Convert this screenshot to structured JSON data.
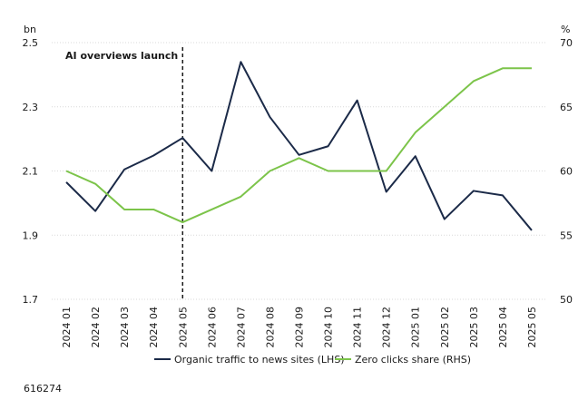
{
  "chart_data": {
    "type": "line",
    "categories": [
      "2024 01",
      "2024 02",
      "2024 03",
      "2024 04",
      "2024 05",
      "2024 06",
      "2024 07",
      "2024 08",
      "2024 09",
      "2024 10",
      "2024 11",
      "2024 12",
      "2025 01",
      "2025 02",
      "2025 03",
      "2025 04",
      "2025 05"
    ],
    "series": [
      {
        "name": "Organic traffic to news sites (LHS)",
        "axis": "left",
        "color": "#1b2a48",
        "values": [
          2.065,
          1.975,
          2.105,
          2.148,
          2.203,
          2.1,
          2.44,
          2.268,
          2.15,
          2.177,
          2.32,
          2.035,
          2.146,
          1.95,
          2.038,
          2.024,
          1.915
        ]
      },
      {
        "name": "Zero clicks share (RHS)",
        "axis": "right",
        "color": "#7cc44a",
        "values": [
          60,
          59,
          57,
          57,
          56,
          57,
          58,
          60,
          61,
          60,
          60,
          60,
          63,
          65,
          67,
          68,
          68
        ]
      }
    ],
    "yleft": {
      "unit": "bn",
      "ylim": [
        1.7,
        2.5
      ],
      "ticks": [
        "1.7",
        "1.9",
        "2.1",
        "2.3",
        "2.5"
      ]
    },
    "yright": {
      "unit": "%",
      "ylim": [
        50,
        70
      ],
      "ticks": [
        "50",
        "55",
        "60",
        "65",
        "70"
      ]
    },
    "annotation": {
      "text": "AI overviews launch",
      "at_category": "2024 05"
    },
    "legend": "bottom",
    "grid": true
  },
  "footnote": "616274"
}
